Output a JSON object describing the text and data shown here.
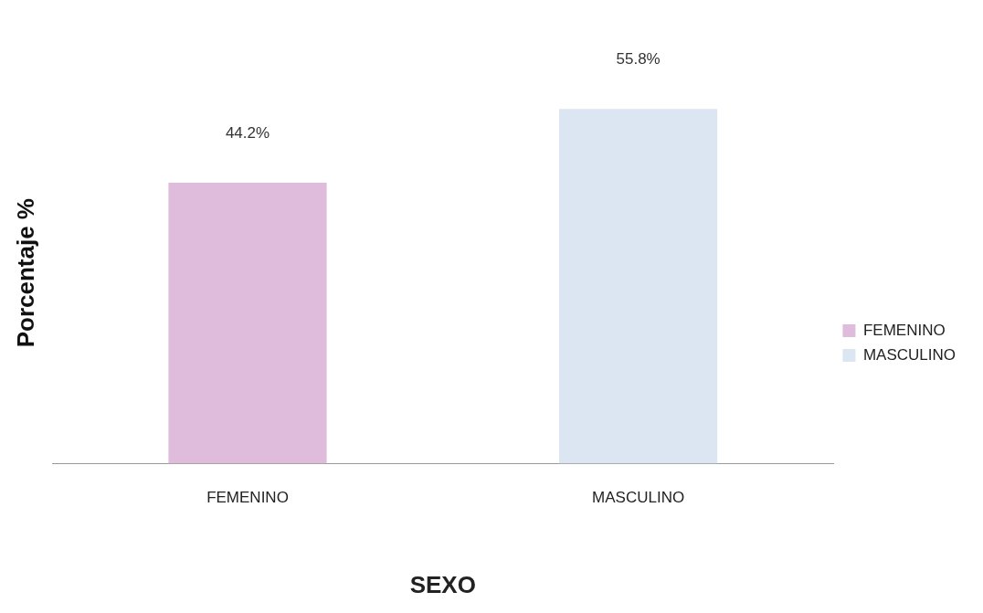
{
  "chart_data": {
    "type": "bar",
    "xlabel": "SEXO",
    "ylabel": "Porcentaje %",
    "categories": [
      "FEMENINO",
      "MASCULINO"
    ],
    "series": [
      {
        "name": "FEMENINO",
        "color": "#e0bcdc",
        "values": [
          44.2,
          null
        ],
        "value_labels": [
          "44.2%",
          null
        ]
      },
      {
        "name": "MASCULINO",
        "color": "#dce6f2",
        "values": [
          null,
          55.8
        ],
        "value_labels": [
          null,
          "55.8%"
        ]
      }
    ],
    "tick_labels": "x",
    "grid": false,
    "legend": "right"
  }
}
